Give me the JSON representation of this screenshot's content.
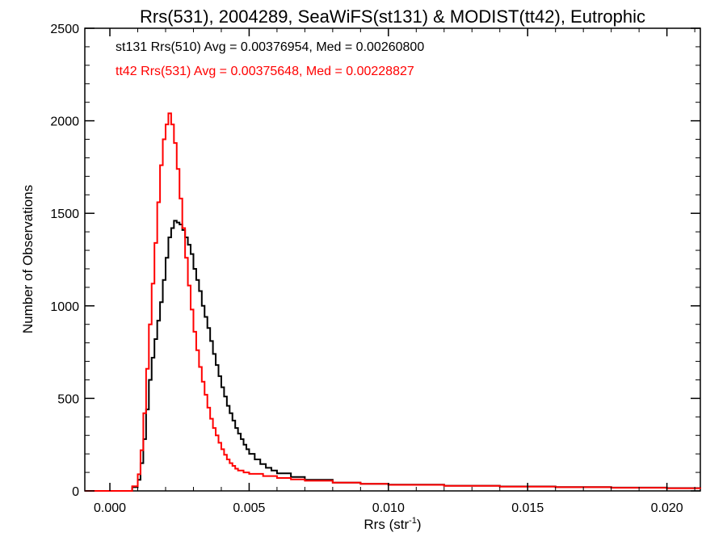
{
  "chart_data": {
    "type": "line",
    "title": "Rrs(531), 2004289, SeaWiFS(st131) & MODIST(tt42), Eutrophic",
    "xlabel_main": "Rrs (str",
    "xlabel_sup": "-1",
    "xlabel_close": ")",
    "ylabel": "Number of Observations",
    "xlim": [
      -0.0009,
      0.0212
    ],
    "ylim": [
      0,
      2500
    ],
    "x_ticks": [
      0.0,
      0.005,
      0.01,
      0.015,
      0.02
    ],
    "x_tick_labels": [
      "0.000",
      "0.005",
      "0.010",
      "0.015",
      "0.020"
    ],
    "y_ticks": [
      0,
      500,
      1000,
      1500,
      2000,
      2500
    ],
    "y_tick_labels": [
      "0",
      "500",
      "1000",
      "1500",
      "2000",
      "2500"
    ],
    "grid": false,
    "legend_position": "top-left",
    "series": [
      {
        "label": "st131 Rrs(510) Avg = 0.00376954, Med = 0.00260800",
        "color": "#000000",
        "points": [
          [
            -0.0009,
            0
          ],
          [
            0.0006,
            0
          ],
          [
            0.0008,
            20
          ],
          [
            0.001,
            60
          ],
          [
            0.0011,
            150
          ],
          [
            0.0012,
            280
          ],
          [
            0.0013,
            440
          ],
          [
            0.0014,
            600
          ],
          [
            0.0015,
            720
          ],
          [
            0.0016,
            820
          ],
          [
            0.0017,
            920
          ],
          [
            0.0018,
            1020
          ],
          [
            0.0019,
            1140
          ],
          [
            0.002,
            1260
          ],
          [
            0.0021,
            1370
          ],
          [
            0.0022,
            1420
          ],
          [
            0.0023,
            1460
          ],
          [
            0.0024,
            1450
          ],
          [
            0.0025,
            1440
          ],
          [
            0.0026,
            1410
          ],
          [
            0.0027,
            1370
          ],
          [
            0.0028,
            1330
          ],
          [
            0.0029,
            1280
          ],
          [
            0.003,
            1200
          ],
          [
            0.0031,
            1140
          ],
          [
            0.0032,
            1080
          ],
          [
            0.0033,
            1000
          ],
          [
            0.0034,
            940
          ],
          [
            0.0035,
            880
          ],
          [
            0.0036,
            810
          ],
          [
            0.0037,
            740
          ],
          [
            0.0038,
            680
          ],
          [
            0.0039,
            620
          ],
          [
            0.004,
            560
          ],
          [
            0.0041,
            510
          ],
          [
            0.0042,
            460
          ],
          [
            0.0043,
            420
          ],
          [
            0.0044,
            380
          ],
          [
            0.0045,
            340
          ],
          [
            0.0046,
            310
          ],
          [
            0.0047,
            280
          ],
          [
            0.0048,
            250
          ],
          [
            0.0049,
            225
          ],
          [
            0.005,
            200
          ],
          [
            0.0052,
            170
          ],
          [
            0.0054,
            145
          ],
          [
            0.0056,
            125
          ],
          [
            0.0058,
            110
          ],
          [
            0.006,
            95
          ],
          [
            0.0065,
            75
          ],
          [
            0.007,
            60
          ],
          [
            0.008,
            45
          ],
          [
            0.009,
            38
          ],
          [
            0.01,
            34
          ],
          [
            0.012,
            28
          ],
          [
            0.014,
            24
          ],
          [
            0.016,
            21
          ],
          [
            0.018,
            18
          ],
          [
            0.02,
            15
          ],
          [
            0.0212,
            13
          ]
        ]
      },
      {
        "label": "tt42 Rrs(531) Avg = 0.00375648, Med = 0.00228827",
        "color": "#ff0000",
        "points": [
          [
            -0.0009,
            0
          ],
          [
            0.0006,
            0
          ],
          [
            0.0008,
            25
          ],
          [
            0.001,
            90
          ],
          [
            0.0011,
            220
          ],
          [
            0.0012,
            420
          ],
          [
            0.0013,
            660
          ],
          [
            0.0014,
            900
          ],
          [
            0.0015,
            1120
          ],
          [
            0.0016,
            1340
          ],
          [
            0.0017,
            1560
          ],
          [
            0.0018,
            1760
          ],
          [
            0.0019,
            1900
          ],
          [
            0.002,
            1980
          ],
          [
            0.0021,
            2040
          ],
          [
            0.0022,
            1980
          ],
          [
            0.0023,
            1880
          ],
          [
            0.0024,
            1740
          ],
          [
            0.0025,
            1580
          ],
          [
            0.0026,
            1420
          ],
          [
            0.0027,
            1260
          ],
          [
            0.0028,
            1110
          ],
          [
            0.0029,
            980
          ],
          [
            0.003,
            860
          ],
          [
            0.0031,
            760
          ],
          [
            0.0032,
            670
          ],
          [
            0.0033,
            590
          ],
          [
            0.0034,
            520
          ],
          [
            0.0035,
            450
          ],
          [
            0.0036,
            390
          ],
          [
            0.0037,
            340
          ],
          [
            0.0038,
            300
          ],
          [
            0.0039,
            260
          ],
          [
            0.004,
            225
          ],
          [
            0.0041,
            195
          ],
          [
            0.0042,
            170
          ],
          [
            0.0043,
            150
          ],
          [
            0.0044,
            135
          ],
          [
            0.0045,
            120
          ],
          [
            0.0046,
            110
          ],
          [
            0.0048,
            100
          ],
          [
            0.005,
            92
          ],
          [
            0.0055,
            80
          ],
          [
            0.006,
            70
          ],
          [
            0.0065,
            62
          ],
          [
            0.007,
            55
          ],
          [
            0.008,
            45
          ],
          [
            0.009,
            38
          ],
          [
            0.01,
            33
          ],
          [
            0.012,
            27
          ],
          [
            0.014,
            23
          ],
          [
            0.016,
            20
          ],
          [
            0.018,
            17
          ],
          [
            0.02,
            14
          ],
          [
            0.0212,
            12
          ]
        ]
      }
    ]
  }
}
